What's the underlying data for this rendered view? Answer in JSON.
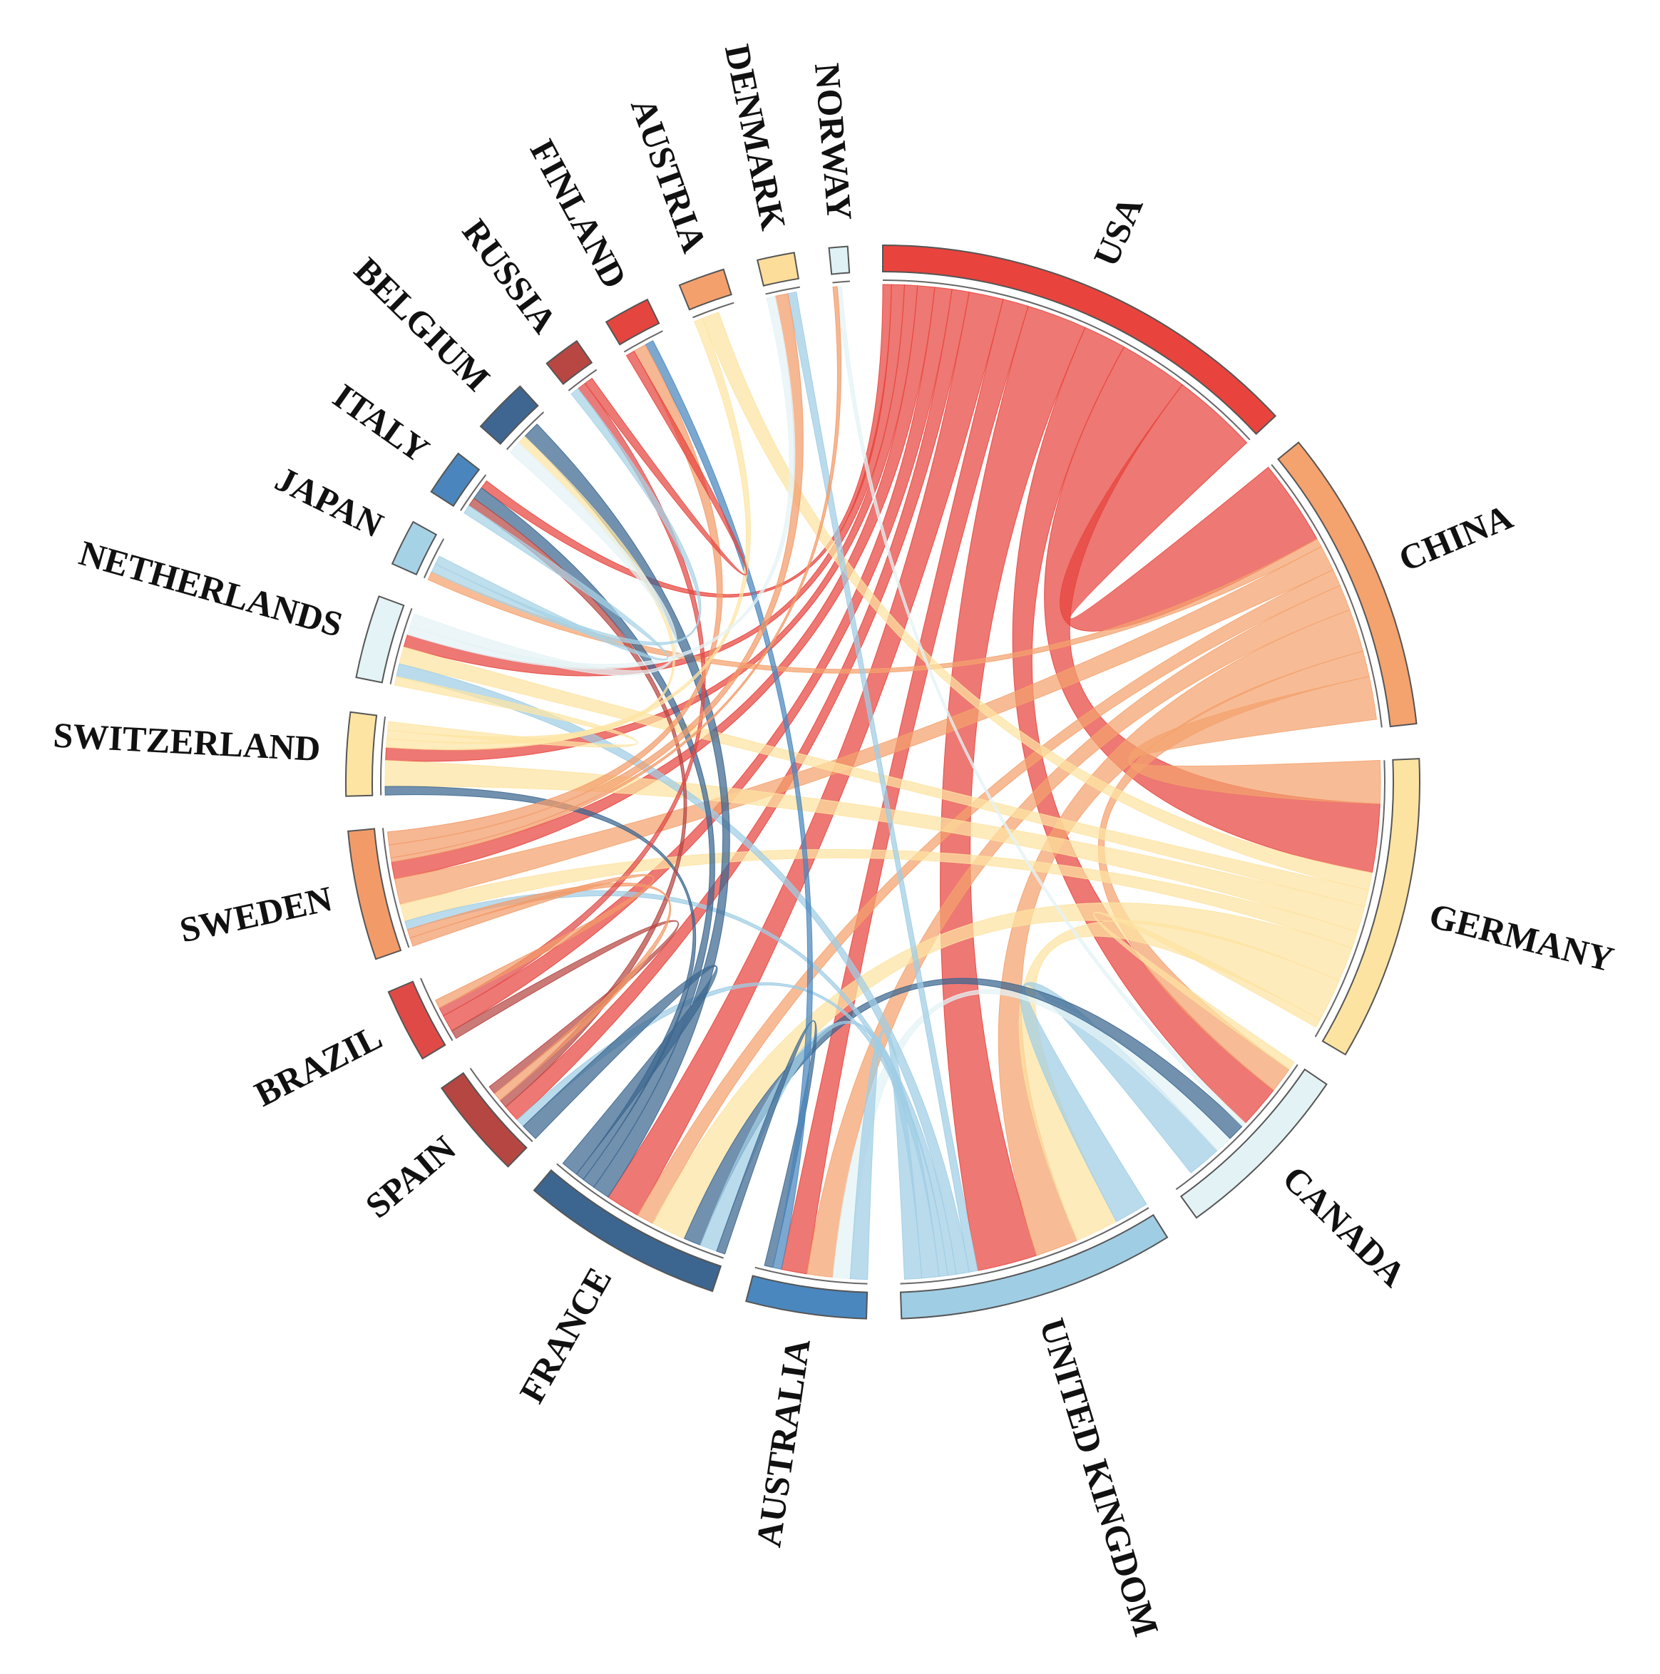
{
  "chart_data": {
    "type": "chord",
    "categories": [
      "USA",
      "CHINA",
      "GERMANY",
      "CANADA",
      "UNITED KINGDOM",
      "AUSTRALIA",
      "FRANCE",
      "SPAIN",
      "BRAZIL",
      "SWEDEN",
      "SWITZERLAND",
      "NETHERLANDS",
      "JAPAN",
      "ITALY",
      "BELGIUM",
      "RUSSIA",
      "FINLAND",
      "AUSTRIA",
      "DENMARK",
      "NORWAY"
    ],
    "values": [
      47,
      33,
      33,
      20,
      30,
      13,
      22,
      11,
      8,
      14,
      9,
      9,
      5,
      5,
      6,
      4,
      5,
      5,
      4,
      2
    ],
    "colors": [
      "#e8443d",
      "#f4a26e",
      "#fde3a2",
      "#e3f3f5",
      "#9fcde4",
      "#4a87be",
      "#3c668f",
      "#b54642",
      "#e04a46",
      "#f29b69",
      "#fde4a3",
      "#e4f3f5",
      "#a6d2e6",
      "#4a86bd",
      "#3e6690",
      "#b84642",
      "#e4453f",
      "#f4a06d",
      "#fddd9a",
      "#dff1f4"
    ],
    "links": [
      {
        "source": 0,
        "target": 1,
        "value": 10
      },
      {
        "source": 0,
        "target": 2,
        "value": 8
      },
      {
        "source": 0,
        "target": 4,
        "value": 7
      },
      {
        "source": 0,
        "target": 3,
        "value": 5
      },
      {
        "source": 0,
        "target": 6,
        "value": 4
      },
      {
        "source": 0,
        "target": 5,
        "value": 3
      },
      {
        "source": 0,
        "target": 9,
        "value": 2
      },
      {
        "source": 0,
        "target": 7,
        "value": 2
      },
      {
        "source": 0,
        "target": 8,
        "value": 2
      },
      {
        "source": 0,
        "target": 10,
        "value": 1.5
      },
      {
        "source": 0,
        "target": 11,
        "value": 1.5
      },
      {
        "source": 0,
        "target": 13,
        "value": 1
      },
      {
        "source": 1,
        "target": 2,
        "value": 5
      },
      {
        "source": 1,
        "target": 4,
        "value": 5
      },
      {
        "source": 1,
        "target": 5,
        "value": 3
      },
      {
        "source": 1,
        "target": 3,
        "value": 3
      },
      {
        "source": 1,
        "target": 9,
        "value": 3
      },
      {
        "source": 1,
        "target": 6,
        "value": 2
      },
      {
        "source": 1,
        "target": 12,
        "value": 1
      },
      {
        "source": 2,
        "target": 4,
        "value": 5
      },
      {
        "source": 2,
        "target": 6,
        "value": 4
      },
      {
        "source": 2,
        "target": 10,
        "value": 3
      },
      {
        "source": 2,
        "target": 11,
        "value": 2
      },
      {
        "source": 2,
        "target": 17,
        "value": 2
      },
      {
        "source": 2,
        "target": 9,
        "value": 2
      },
      {
        "source": 2,
        "target": 3,
        "value": 1
      },
      {
        "source": 3,
        "target": 4,
        "value": 4
      },
      {
        "source": 3,
        "target": 5,
        "value": 2
      },
      {
        "source": 3,
        "target": 6,
        "value": 2
      },
      {
        "source": 3,
        "target": 19,
        "value": 0.5
      },
      {
        "source": 4,
        "target": 5,
        "value": 2
      },
      {
        "source": 4,
        "target": 6,
        "value": 2
      },
      {
        "source": 4,
        "target": 11,
        "value": 1.5
      },
      {
        "source": 4,
        "target": 9,
        "value": 1
      },
      {
        "source": 4,
        "target": 18,
        "value": 1
      },
      {
        "source": 4,
        "target": 7,
        "value": 1
      },
      {
        "source": 5,
        "target": 6,
        "value": 1
      },
      {
        "source": 5,
        "target": 16,
        "value": 1
      },
      {
        "source": 6,
        "target": 7,
        "value": 2
      },
      {
        "source": 6,
        "target": 14,
        "value": 2
      },
      {
        "source": 6,
        "target": 13,
        "value": 1.5
      },
      {
        "source": 6,
        "target": 10,
        "value": 1
      },
      {
        "source": 7,
        "target": 8,
        "value": 1
      },
      {
        "source": 7,
        "target": 13,
        "value": 1
      },
      {
        "source": 7,
        "target": 9,
        "value": 1
      },
      {
        "source": 8,
        "target": 15,
        "value": 1
      },
      {
        "source": 8,
        "target": 9,
        "value": 1
      },
      {
        "source": 9,
        "target": 16,
        "value": 1.5
      },
      {
        "source": 9,
        "target": 18,
        "value": 1.5
      },
      {
        "source": 9,
        "target": 19,
        "value": 0.5
      },
      {
        "source": 10,
        "target": 11,
        "value": 1
      },
      {
        "source": 10,
        "target": 14,
        "value": 1
      },
      {
        "source": 10,
        "target": 17,
        "value": 1
      },
      {
        "source": 11,
        "target": 14,
        "value": 1.5
      },
      {
        "source": 11,
        "target": 18,
        "value": 1
      },
      {
        "source": 12,
        "target": 15,
        "value": 1
      },
      {
        "source": 12,
        "target": 13,
        "value": 1
      },
      {
        "source": 15,
        "target": 16,
        "value": 1
      }
    ]
  }
}
